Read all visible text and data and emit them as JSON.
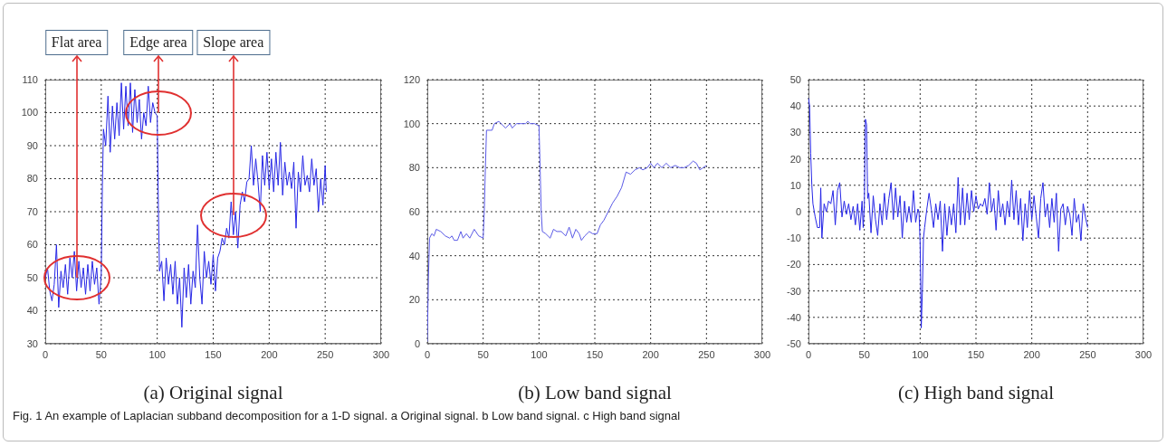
{
  "chart_data": [
    {
      "type": "line",
      "xlabel": "(a) Original signal",
      "xlim": [
        0,
        300
      ],
      "xticks": [
        0,
        50,
        100,
        150,
        200,
        250,
        300
      ],
      "ylim": [
        30,
        110
      ],
      "yticks": [
        30,
        40,
        50,
        60,
        70,
        80,
        90,
        100,
        110
      ],
      "grid": true,
      "line_style": "solid",
      "series": [
        {
          "color": "#2626e6",
          "x": [
            0,
            2,
            4,
            6,
            8,
            10,
            12,
            14,
            16,
            18,
            20,
            22,
            24,
            26,
            28,
            30,
            32,
            34,
            36,
            38,
            40,
            42,
            44,
            46,
            48,
            50,
            51,
            52,
            54,
            56,
            58,
            60,
            62,
            64,
            66,
            68,
            70,
            72,
            74,
            76,
            78,
            80,
            82,
            84,
            86,
            88,
            90,
            92,
            94,
            96,
            98,
            100,
            101,
            102,
            104,
            106,
            108,
            110,
            112,
            114,
            116,
            118,
            120,
            122,
            124,
            126,
            128,
            130,
            132,
            134,
            136,
            138,
            140,
            142,
            144,
            146,
            148,
            150,
            152,
            154,
            156,
            158,
            160,
            162,
            164,
            166,
            168,
            170,
            172,
            174,
            176,
            178,
            180,
            182,
            184,
            186,
            188,
            190,
            192,
            194,
            196,
            198,
            200,
            202,
            204,
            206,
            208,
            210,
            212,
            214,
            216,
            218,
            220,
            222,
            224,
            226,
            228,
            230,
            232,
            234,
            236,
            238,
            240,
            242,
            244,
            246,
            248,
            250,
            251
          ],
          "values": [
            50,
            53,
            46,
            43,
            48,
            60,
            41,
            52,
            47,
            54,
            45,
            56,
            50,
            58,
            46,
            55,
            47,
            53,
            45,
            54,
            46,
            55,
            48,
            53,
            42,
            51,
            78,
            95,
            90,
            105,
            88,
            102,
            92,
            103,
            93,
            109,
            95,
            108,
            96,
            109,
            94,
            107,
            97,
            104,
            92,
            100,
            96,
            108,
            97,
            103,
            100,
            99,
            72,
            52,
            55,
            43,
            56,
            48,
            54,
            45,
            55,
            42,
            50,
            35,
            53,
            44,
            54,
            42,
            52,
            47,
            66,
            50,
            42,
            58,
            50,
            55,
            48,
            57,
            46,
            56,
            58,
            62,
            60,
            65,
            62,
            73,
            63,
            70,
            59,
            72,
            76,
            73,
            79,
            80,
            90,
            78,
            86,
            79,
            70,
            87,
            78,
            88,
            77,
            86,
            76,
            88,
            78,
            91,
            75,
            85,
            78,
            82,
            77,
            85,
            65,
            82,
            76,
            87,
            78,
            81,
            76,
            86,
            78,
            83,
            70,
            80,
            72,
            84,
            76
          ]
        }
      ],
      "annotations": [
        {
          "text": "Flat area",
          "x": 28,
          "y": 50
        },
        {
          "text": "Edge area",
          "x": 101,
          "y": 100
        },
        {
          "text": "Slope area",
          "x": 168,
          "y": 69
        },
        "Fig. 1 An example of Laplacian subband decomposition for a 1-D signal. a Original signal. b Low band signal. c High band signal"
      ]
    },
    {
      "type": "line",
      "xlabel": "(b) Low band signal",
      "xlim": [
        0,
        300
      ],
      "xticks": [
        0,
        50,
        100,
        150,
        200,
        250,
        300
      ],
      "ylim": [
        0,
        120
      ],
      "yticks": [
        0,
        20,
        40,
        60,
        80,
        100,
        120
      ],
      "grid": true,
      "line_style": "solid",
      "series": [
        {
          "color": "#5a5ae6",
          "x": [
            0,
            1,
            2,
            4,
            6,
            8,
            12,
            16,
            20,
            22,
            24,
            27,
            30,
            32,
            35,
            38,
            42,
            46,
            50,
            51,
            52,
            53,
            56,
            58,
            60,
            64,
            68,
            70,
            74,
            76,
            80,
            84,
            88,
            90,
            92,
            96,
            100,
            101,
            102,
            103,
            106,
            110,
            113,
            116,
            120,
            124,
            127,
            130,
            133,
            136,
            138,
            141,
            145,
            148,
            152,
            155,
            158,
            162,
            166,
            170,
            174,
            178,
            182,
            186,
            190,
            193,
            197,
            200,
            203,
            206,
            210,
            214,
            218,
            222,
            226,
            230,
            234,
            238,
            241,
            244,
            247,
            250
          ],
          "values": [
            1,
            30,
            48,
            50,
            49,
            52,
            51,
            49,
            48,
            49,
            47,
            47,
            51,
            48,
            50,
            48,
            52,
            49,
            48,
            60,
            80,
            97,
            97,
            97,
            100,
            101,
            99,
            98,
            100,
            98,
            100,
            100,
            100,
            101,
            100,
            100,
            99,
            80,
            60,
            51,
            50,
            48,
            52,
            51,
            51,
            49,
            53,
            48,
            52,
            50,
            47,
            49,
            51,
            50,
            50,
            54,
            56,
            60,
            64,
            67,
            71,
            78,
            77,
            79,
            80,
            79,
            80,
            82,
            80,
            82,
            80,
            82,
            80,
            81,
            80,
            80,
            81,
            83,
            82,
            79,
            80,
            81
          ]
        }
      ]
    },
    {
      "type": "line",
      "xlabel": "(c) High band signal",
      "xlim": [
        0,
        300
      ],
      "xticks": [
        0,
        50,
        100,
        150,
        200,
        250,
        300
      ],
      "ylim": [
        -50,
        50
      ],
      "yticks": [
        -50,
        -40,
        -30,
        -20,
        -10,
        0,
        10,
        20,
        30,
        40,
        50
      ],
      "grid": true,
      "line_style": "solid",
      "series": [
        {
          "color": "#2626e6",
          "x": [
            0,
            1,
            2,
            3,
            4,
            6,
            8,
            10,
            11,
            12,
            14,
            16,
            18,
            20,
            22,
            24,
            26,
            28,
            30,
            32,
            34,
            36,
            38,
            40,
            42,
            44,
            46,
            48,
            49,
            50,
            51,
            52,
            53,
            54,
            56,
            58,
            60,
            62,
            64,
            66,
            68,
            70,
            72,
            74,
            76,
            78,
            80,
            82,
            84,
            86,
            88,
            90,
            92,
            94,
            96,
            98,
            99,
            100,
            101,
            102,
            103,
            104,
            106,
            108,
            110,
            112,
            114,
            116,
            118,
            120,
            122,
            124,
            126,
            128,
            130,
            132,
            134,
            136,
            138,
            140,
            142,
            144,
            146,
            148,
            150,
            152,
            154,
            156,
            158,
            160,
            162,
            164,
            166,
            168,
            170,
            172,
            174,
            176,
            178,
            180,
            182,
            184,
            186,
            188,
            190,
            192,
            194,
            196,
            198,
            200,
            202,
            204,
            206,
            208,
            210,
            212,
            214,
            216,
            218,
            220,
            222,
            224,
            226,
            228,
            230,
            232,
            234,
            236,
            238,
            240,
            242,
            244,
            246,
            248,
            250
          ],
          "values": [
            43,
            40,
            22,
            10,
            3,
            -2,
            -6,
            -6,
            9,
            -10,
            3,
            0,
            4,
            3,
            8,
            -5,
            8,
            11,
            -2,
            4,
            -1,
            3,
            -3,
            2,
            -5,
            3,
            -7,
            4,
            -6,
            2,
            35,
            33,
            5,
            7,
            -8,
            6,
            -3,
            -9,
            3,
            -5,
            7,
            -3,
            5,
            11,
            -3,
            9,
            -2,
            6,
            -10,
            4,
            -4,
            2,
            -4,
            8,
            -4,
            1,
            0,
            -12,
            -44,
            -30,
            -10,
            -6,
            1,
            7,
            1,
            -6,
            3,
            -3,
            4,
            -15,
            3,
            -9,
            2,
            -5,
            3,
            -8,
            13,
            -5,
            9,
            -5,
            7,
            -3,
            8,
            0,
            6,
            1,
            3,
            2,
            5,
            -1,
            11,
            0,
            5,
            -7,
            8,
            -2,
            3,
            -5,
            4,
            -2,
            12,
            -3,
            8,
            -5,
            5,
            -11,
            3,
            -6,
            8,
            -3,
            6,
            -2,
            -10,
            5,
            11,
            -2,
            3,
            -6,
            5,
            -4,
            7,
            -15,
            1,
            3,
            -5,
            2,
            -1,
            -9,
            5,
            -4,
            -1,
            -11,
            3,
            -2,
            -6
          ]
        }
      ]
    }
  ]
}
